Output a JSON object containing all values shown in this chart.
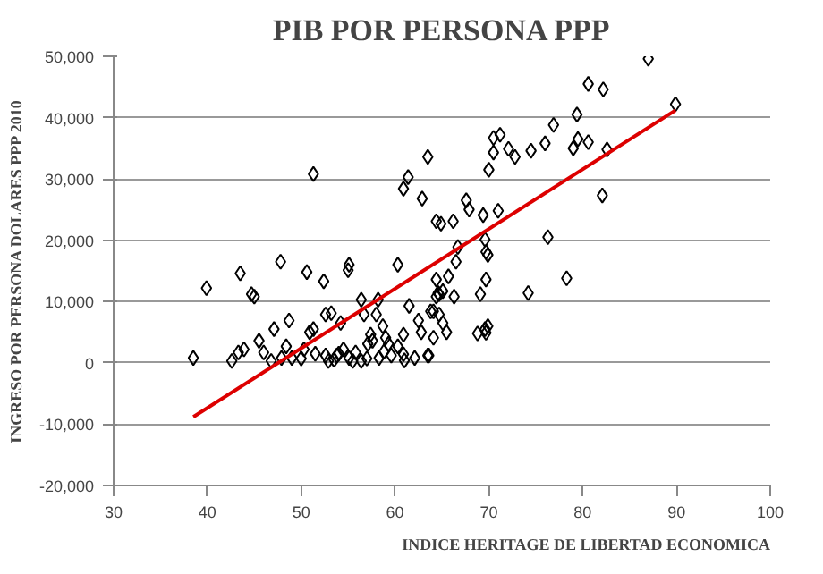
{
  "chart_data": {
    "type": "scatter",
    "title": "PIB POR PERSONA PPP",
    "xlabel": "INDICE HERITAGE DE LIBERTAD ECONOMICA",
    "ylabel": "INGRESO POR PERSONA DOLARES PPP 2010",
    "xlim": [
      30,
      100
    ],
    "ylim": [
      -20000,
      50000
    ],
    "xticks": [
      30,
      40,
      50,
      60,
      70,
      80,
      90,
      100
    ],
    "yticks": [
      {
        "value": -20000,
        "label": "-20,000"
      },
      {
        "value": -10000,
        "label": "-10,000"
      },
      {
        "value": 0,
        "label": "0"
      },
      {
        "value": 10000,
        "label": "10,000"
      },
      {
        "value": 20000,
        "label": "20,000"
      },
      {
        "value": 30000,
        "label": "30,000"
      },
      {
        "value": 40000,
        "label": "40,000"
      },
      {
        "value": 50000,
        "label": "50,000"
      }
    ],
    "grid": "y",
    "series": [
      {
        "marker": "diamond",
        "color": "#000000",
        "x": [
          87.0,
          80.6,
          82.2,
          89.9,
          79.4,
          76.9,
          71.2,
          70.5,
          70.5,
          72.1,
          72.8,
          74.5,
          76.0,
          79.5,
          79.0,
          80.6,
          82.6,
          70.0,
          82.1,
          67.6,
          67.9,
          69.4,
          71.0,
          66.2,
          64.4,
          64.9,
          69.6,
          76.3,
          69.7,
          63.5,
          66.7,
          51.3,
          61.4,
          60.9,
          62.9,
          38.5,
          39.9,
          43.5,
          44.7,
          45.0,
          47.8,
          50.6,
          52.4,
          55.1,
          55.0,
          60.3,
          58.2,
          56.4,
          48.7,
          47.1,
          45.5,
          43.9,
          42.6,
          43.3,
          46.0,
          46.8,
          48.4,
          47.9,
          49.0,
          50.3,
          50.9,
          51.3,
          52.6,
          53.2,
          54.2,
          52.6,
          52.9,
          53.8,
          54.5,
          55.1,
          55.8,
          56.4,
          57.1,
          57.4,
          58.0,
          58.7,
          59.0,
          59.6,
          60.3,
          60.9,
          61.5,
          62.5,
          62.1,
          63.5,
          62.8,
          63.8,
          64.4,
          65.1,
          64.1,
          56.7,
          57.6,
          58.3,
          59.3,
          69.9,
          66.5,
          65.7,
          69.7,
          64.4,
          64.6,
          64.7,
          66.3,
          69.1,
          74.2,
          78.3,
          64.1,
          64.7,
          65.1,
          65.5,
          68.8,
          69.6,
          69.9,
          69.7,
          63.6,
          53.5,
          54.0,
          55.5,
          57.0,
          58.8,
          61.0,
          50.0,
          51.5,
          60.9
        ],
        "values": [
          49600,
          45500,
          44600,
          42200,
          40500,
          38800,
          37200,
          36700,
          34300,
          34900,
          33600,
          34600,
          35800,
          36500,
          35000,
          36000,
          34800,
          31500,
          27300,
          26500,
          25000,
          24100,
          24800,
          23100,
          23100,
          22700,
          20100,
          20500,
          18100,
          33600,
          18900,
          30800,
          30300,
          28400,
          26800,
          800,
          12200,
          14600,
          11200,
          10800,
          16500,
          14800,
          13300,
          16000,
          15100,
          16000,
          10300,
          10300,
          6900,
          5500,
          3600,
          2200,
          300,
          1700,
          1700,
          300,
          2700,
          800,
          800,
          2200,
          5000,
          5500,
          7900,
          8100,
          6500,
          1200,
          300,
          1200,
          2200,
          800,
          1700,
          300,
          3100,
          4600,
          7900,
          6000,
          4100,
          1200,
          2700,
          4600,
          9300,
          6900,
          800,
          1200,
          5000,
          8400,
          10800,
          11700,
          4100,
          7900,
          3600,
          800,
          3100,
          17600,
          16500,
          14100,
          13600,
          13600,
          11400,
          11200,
          10800,
          11200,
          11400,
          13800,
          8400,
          7900,
          6500,
          5000,
          4800,
          5500,
          6000,
          4900,
          1200,
          500,
          1500,
          300,
          700,
          1800,
          400,
          700,
          1500,
          1400
        ]
      },
      {
        "type": "line",
        "marker": "none",
        "color": "#dd0000",
        "x": [
          38.5,
          89.9
        ],
        "values": [
          -8800,
          41200
        ]
      }
    ]
  }
}
